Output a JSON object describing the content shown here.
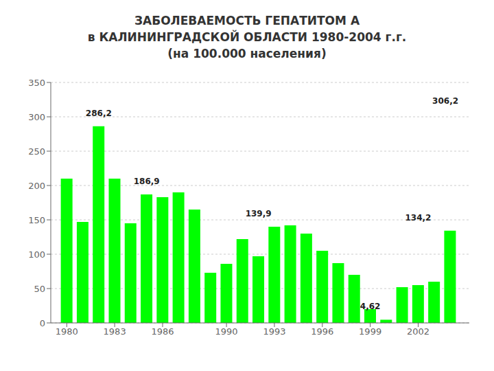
{
  "chart_data": {
    "type": "bar",
    "title": "ЗАБОЛЕВАЕМОСТЬ ГЕПАТИТОМ А\nв КАЛИНИНГРАДСКОЙ ОБЛАСТИ 1980-2004 г.г.\n(на 100.000 населения)",
    "x": [
      1980,
      1981,
      1982,
      1983,
      1984,
      1985,
      1986,
      1987,
      1988,
      1989,
      1990,
      1991,
      1992,
      1993,
      1994,
      1995,
      1996,
      1997,
      1998,
      1999,
      2000,
      2001,
      2002,
      2003,
      2004
    ],
    "values": [
      210,
      147,
      286.2,
      210,
      145,
      186.9,
      183,
      190,
      165,
      73,
      86,
      122,
      97,
      139.9,
      142,
      130,
      105,
      87,
      70,
      20,
      4.62,
      52,
      55,
      60,
      134.2
    ],
    "color": "#00FF00",
    "xlim": [
      1979.0,
      2005.2
    ],
    "xticks": [
      1980,
      1983,
      1986,
      1990,
      1993,
      1996,
      1999,
      2002
    ],
    "ylim": [
      0,
      350
    ],
    "yticks": [
      0,
      50,
      100,
      150,
      200,
      250,
      300,
      350
    ],
    "grid": true,
    "annotations": [
      {
        "text": "286,2",
        "x": 1982,
        "y": 296.2
      },
      {
        "text": "186,9",
        "x": 1985,
        "y": 196.9
      },
      {
        "text": "139,9",
        "x": 1992,
        "y": 149.9
      },
      {
        "text": "4,62",
        "x": 1999,
        "y": 14.62
      },
      {
        "text": "134,2",
        "x": 2002,
        "y": 144.2
      },
      {
        "text": "306,2",
        "x": 2003.7,
        "y": 314.2
      }
    ]
  }
}
